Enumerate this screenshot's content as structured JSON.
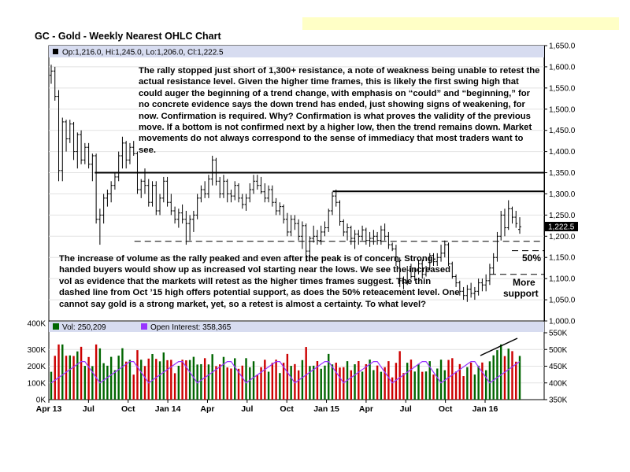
{
  "banner_color": "#ffffc6",
  "chart_data": {
    "type": "ohlc",
    "title": "GC - Gold - Weekly Nearest OHLC Chart",
    "ohlc_readout": "Op:1,216.0, Hi:1,245.0, Lo:1,206.0, Cl:1,222.5",
    "last_price_label": "1,222.5",
    "price_axis": {
      "ticks": [
        "1,650.0",
        "1,600.0",
        "1,550.0",
        "1,500.0",
        "1,450.0",
        "1,400.0",
        "1,350.0",
        "1,300.0",
        "1,250.0",
        "1,200.0",
        "1,150.0",
        "1,100.0",
        "1,050.0",
        "1,000.0"
      ],
      "ylim": [
        1000,
        1650
      ]
    },
    "x_axis": {
      "labels": [
        "Apr 13",
        "Jul",
        "Oct",
        "Jan 14",
        "Apr",
        "Jul",
        "Oct",
        "Jan 15",
        "Apr",
        "Jul",
        "Oct",
        "Jan 16"
      ]
    },
    "ohlc_weekly": [
      [
        1580,
        1605,
        1560,
        1590
      ],
      [
        1590,
        1600,
        1520,
        1530
      ],
      [
        1530,
        1545,
        1330,
        1355
      ],
      [
        1355,
        1480,
        1330,
        1470
      ],
      [
        1470,
        1475,
        1400,
        1430
      ],
      [
        1430,
        1475,
        1420,
        1465
      ],
      [
        1465,
        1470,
        1380,
        1400
      ],
      [
        1400,
        1445,
        1360,
        1440
      ],
      [
        1440,
        1450,
        1370,
        1380
      ],
      [
        1380,
        1420,
        1370,
        1410
      ],
      [
        1410,
        1420,
        1360,
        1370
      ],
      [
        1370,
        1395,
        1330,
        1390
      ],
      [
        1390,
        1395,
        1230,
        1240
      ],
      [
        1240,
        1265,
        1180,
        1250
      ],
      [
        1250,
        1300,
        1230,
        1290
      ],
      [
        1290,
        1310,
        1270,
        1300
      ],
      [
        1300,
        1330,
        1280,
        1320
      ],
      [
        1320,
        1350,
        1310,
        1340
      ],
      [
        1340,
        1400,
        1330,
        1390
      ],
      [
        1390,
        1435,
        1360,
        1420
      ],
      [
        1420,
        1425,
        1360,
        1380
      ],
      [
        1380,
        1420,
        1370,
        1410
      ],
      [
        1410,
        1425,
        1390,
        1395
      ],
      [
        1395,
        1400,
        1300,
        1310
      ],
      [
        1310,
        1335,
        1290,
        1330
      ],
      [
        1330,
        1360,
        1300,
        1320
      ],
      [
        1320,
        1335,
        1270,
        1280
      ],
      [
        1280,
        1330,
        1270,
        1320
      ],
      [
        1320,
        1330,
        1250,
        1260
      ],
      [
        1260,
        1300,
        1250,
        1290
      ],
      [
        1290,
        1340,
        1280,
        1330
      ],
      [
        1330,
        1340,
        1270,
        1280
      ],
      [
        1280,
        1300,
        1250,
        1260
      ],
      [
        1260,
        1270,
        1230,
        1240
      ],
      [
        1240,
        1265,
        1220,
        1255
      ],
      [
        1255,
        1275,
        1230,
        1240
      ],
      [
        1240,
        1260,
        1180,
        1230
      ],
      [
        1230,
        1250,
        1190,
        1240
      ],
      [
        1240,
        1260,
        1210,
        1250
      ],
      [
        1250,
        1300,
        1240,
        1290
      ],
      [
        1290,
        1320,
        1280,
        1310
      ],
      [
        1310,
        1330,
        1290,
        1300
      ],
      [
        1300,
        1345,
        1290,
        1335
      ],
      [
        1335,
        1390,
        1320,
        1380
      ],
      [
        1380,
        1385,
        1320,
        1330
      ],
      [
        1330,
        1340,
        1290,
        1300
      ],
      [
        1300,
        1345,
        1290,
        1330
      ],
      [
        1330,
        1335,
        1280,
        1300
      ],
      [
        1300,
        1310,
        1280,
        1295
      ],
      [
        1295,
        1330,
        1285,
        1320
      ],
      [
        1320,
        1325,
        1280,
        1290
      ],
      [
        1290,
        1300,
        1265,
        1275
      ],
      [
        1275,
        1300,
        1260,
        1290
      ],
      [
        1290,
        1325,
        1280,
        1310
      ],
      [
        1310,
        1345,
        1300,
        1330
      ],
      [
        1330,
        1345,
        1310,
        1320
      ],
      [
        1320,
        1340,
        1300,
        1305
      ],
      [
        1305,
        1325,
        1280,
        1290
      ],
      [
        1290,
        1320,
        1280,
        1310
      ],
      [
        1310,
        1320,
        1270,
        1280
      ],
      [
        1280,
        1290,
        1250,
        1260
      ],
      [
        1260,
        1280,
        1250,
        1270
      ],
      [
        1270,
        1275,
        1230,
        1240
      ],
      [
        1240,
        1255,
        1200,
        1210
      ],
      [
        1210,
        1250,
        1200,
        1240
      ],
      [
        1240,
        1250,
        1215,
        1230
      ],
      [
        1230,
        1240,
        1190,
        1200
      ],
      [
        1200,
        1235,
        1170,
        1225
      ],
      [
        1225,
        1230,
        1140,
        1165
      ],
      [
        1165,
        1200,
        1140,
        1195
      ],
      [
        1195,
        1225,
        1185,
        1200
      ],
      [
        1200,
        1215,
        1180,
        1190
      ],
      [
        1190,
        1225,
        1180,
        1210
      ],
      [
        1210,
        1235,
        1200,
        1220
      ],
      [
        1220,
        1265,
        1210,
        1260
      ],
      [
        1260,
        1305,
        1250,
        1295
      ],
      [
        1295,
        1310,
        1270,
        1280
      ],
      [
        1280,
        1285,
        1225,
        1235
      ],
      [
        1235,
        1240,
        1200,
        1210
      ],
      [
        1210,
        1230,
        1190,
        1220
      ],
      [
        1220,
        1225,
        1180,
        1195
      ],
      [
        1195,
        1215,
        1170,
        1205
      ],
      [
        1205,
        1215,
        1180,
        1200
      ],
      [
        1200,
        1225,
        1190,
        1215
      ],
      [
        1215,
        1220,
        1180,
        1190
      ],
      [
        1190,
        1210,
        1175,
        1195
      ],
      [
        1195,
        1215,
        1180,
        1200
      ],
      [
        1200,
        1210,
        1180,
        1190
      ],
      [
        1190,
        1225,
        1180,
        1215
      ],
      [
        1215,
        1230,
        1190,
        1200
      ],
      [
        1200,
        1210,
        1170,
        1180
      ],
      [
        1180,
        1185,
        1165,
        1170
      ],
      [
        1170,
        1180,
        1130,
        1140
      ],
      [
        1140,
        1150,
        1080,
        1095
      ],
      [
        1095,
        1105,
        1075,
        1090
      ],
      [
        1090,
        1130,
        1085,
        1120
      ],
      [
        1120,
        1135,
        1100,
        1105
      ],
      [
        1105,
        1125,
        1095,
        1120
      ],
      [
        1120,
        1145,
        1110,
        1135
      ],
      [
        1135,
        1145,
        1100,
        1110
      ],
      [
        1110,
        1130,
        1105,
        1125
      ],
      [
        1125,
        1160,
        1120,
        1155
      ],
      [
        1155,
        1160,
        1130,
        1140
      ],
      [
        1140,
        1160,
        1130,
        1150
      ],
      [
        1150,
        1180,
        1140,
        1160
      ],
      [
        1160,
        1190,
        1150,
        1180
      ],
      [
        1180,
        1185,
        1130,
        1135
      ],
      [
        1135,
        1140,
        1100,
        1105
      ],
      [
        1105,
        1110,
        1080,
        1090
      ],
      [
        1090,
        1095,
        1060,
        1070
      ],
      [
        1070,
        1080,
        1050,
        1060
      ],
      [
        1060,
        1085,
        1045,
        1075
      ],
      [
        1075,
        1090,
        1055,
        1065
      ],
      [
        1065,
        1080,
        1050,
        1070
      ],
      [
        1070,
        1100,
        1060,
        1090
      ],
      [
        1090,
        1100,
        1070,
        1085
      ],
      [
        1085,
        1110,
        1070,
        1095
      ],
      [
        1095,
        1135,
        1085,
        1125
      ],
      [
        1125,
        1160,
        1110,
        1150
      ],
      [
        1150,
        1210,
        1140,
        1200
      ],
      [
        1200,
        1260,
        1190,
        1250
      ],
      [
        1250,
        1265,
        1200,
        1220
      ],
      [
        1220,
        1285,
        1215,
        1265
      ],
      [
        1265,
        1270,
        1230,
        1245
      ],
      [
        1245,
        1260,
        1220,
        1230
      ],
      [
        1216,
        1245,
        1206,
        1222.5
      ]
    ],
    "reference_lines": [
      {
        "kind": "solid",
        "value": 1350,
        "x_start": "Jul"
      },
      {
        "kind": "solid",
        "value": 1306,
        "x_start": "Jan 15"
      },
      {
        "kind": "dashed",
        "value": 1188,
        "x_start": "Oct"
      },
      {
        "kind": "dashed",
        "value": 1166
      },
      {
        "kind": "dashed",
        "value": 1110
      }
    ],
    "labels": {
      "fifty_pct": "50%",
      "more_support": [
        "More",
        "support"
      ]
    },
    "volume_panel": {
      "vol_label": "Vol: 250,209",
      "oi_label": "Open Interest: 358,365",
      "left_ticks": [
        "400K",
        "300K",
        "200K",
        "100K",
        "0K"
      ],
      "right_ticks": [
        "550K",
        "500K",
        "450K",
        "400K",
        "350K"
      ],
      "vol_ylim": [
        0,
        400000
      ],
      "oi_ylim": [
        350000,
        550000
      ],
      "colors": {
        "up": "#006600",
        "down": "#cc0000",
        "oi": "#9933ff"
      }
    }
  },
  "notes": {
    "top": "The rally stopped just short of 1,300+ resistance, a note of weakness being unable to retest the actual resistance level.  Given the higher time frames, this is likely the first swing high that could auger the beginning of a trend change, with emphasis on “could” and “beginning,” for no concrete evidence says the down trend has ended, just showing signs of weakening, for now.  Confirmation is required.  Why?  Confirmation is what proves the validity of the previous move.  If a bottom is not confirmed next by a higher low, then the trend remains down.  Market movements do not always correspond to the sense of immediacy that most traders want to see.",
    "bottom": "The increase of volume as the rally peaked and even after the peak is of concern.  Strong-handed buyers would show up as increased vol starting near the lows.  We see the increased vol as evidence that the markets will retest as the higher times frames suggest.  The thin dashed line from Oct ’15 high offers potential support, as does the 50% reteacement level.  One cannot say gold is a strong market, yet, so a retest is almost a certainty.  To what level?"
  }
}
